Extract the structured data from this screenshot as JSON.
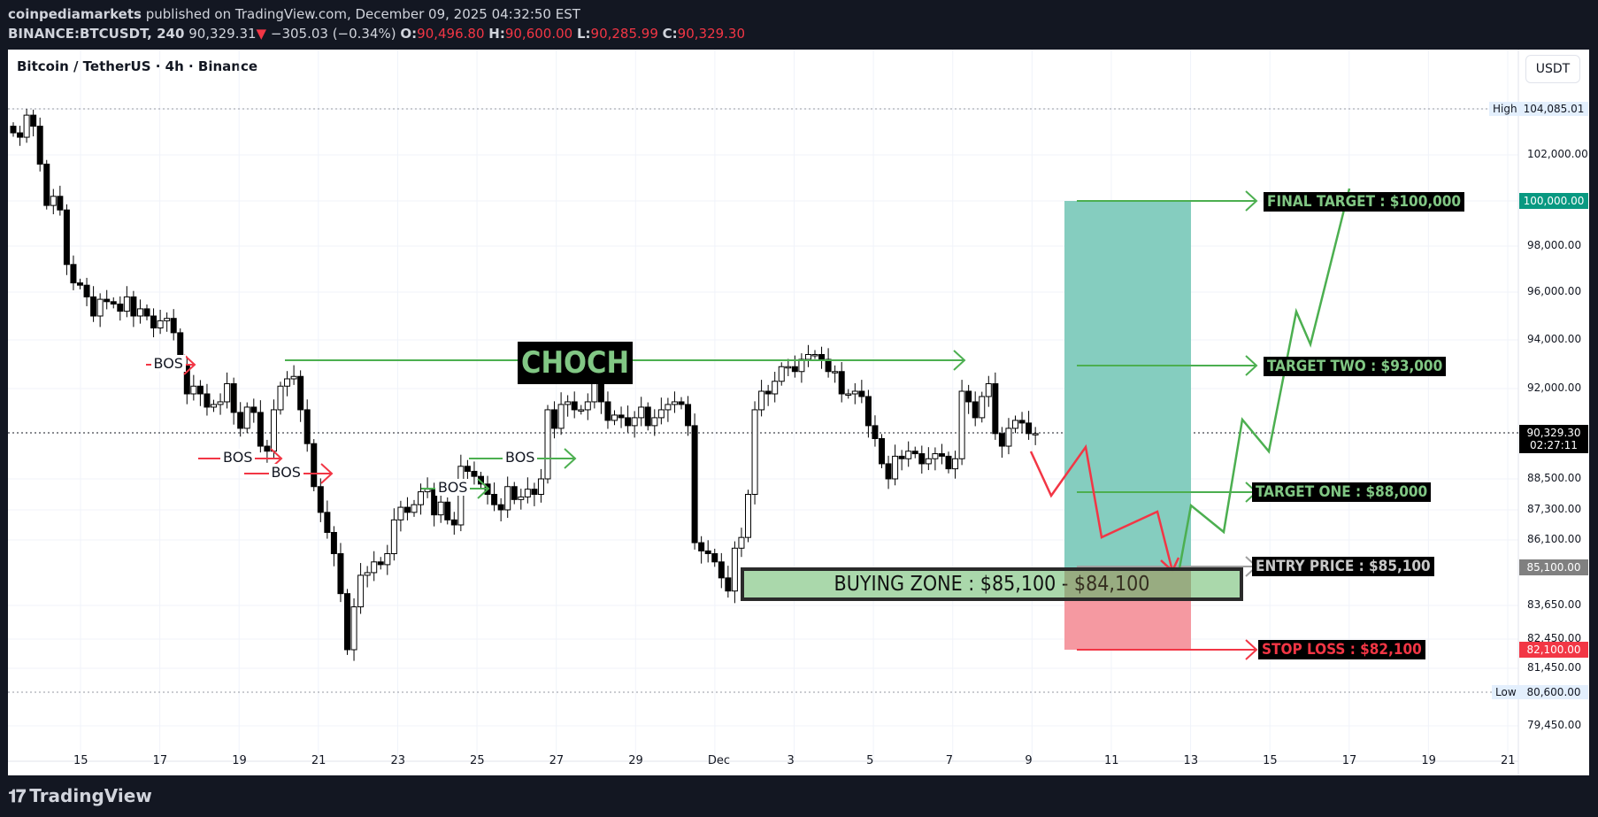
{
  "header": {
    "publisher": "coinpediamarkets",
    "published_text": " published on TradingView.com, December 09, 2025 04:32:50 EST",
    "symbol": "BINANCE:BTCUSDT, 240",
    "last_price": "90,329.31",
    "change_arrow": "▼",
    "change": "−305.03 (−0.34%)",
    "open_label": "O:",
    "open": "90,496.80",
    "high_label": "H:",
    "high": "90,600.00",
    "low_label": "L:",
    "low": "90,285.99",
    "close_label": "C:",
    "close": "90,329.30"
  },
  "chart": {
    "title": "Bitcoin / TetherUS · 4h · Binance",
    "currency_button": "USDT",
    "high_label": "High",
    "high_value": "104,085.01",
    "low_label": "Low",
    "low_value": "80,600.00",
    "current_price": "90,329.30",
    "countdown": "02:27:11",
    "tag_final": "100,000.00",
    "tag_entry": "85,100.00",
    "tag_stop": "82,100.00"
  },
  "annotations": {
    "choch": "CHOCH",
    "bos": "BOS",
    "buying_zone": "BUYING ZONE : $85,100 - $84,100",
    "final_target": "FINAL TARGET : $100,000",
    "target_two": "TARGET TWO : $93,000",
    "target_one": "TARGET ONE : $88,000",
    "entry_price": "ENTRY PRICE : $85,100",
    "stop_loss": "STOP LOSS : $82,100"
  },
  "colors": {
    "green": "#4caf50",
    "red": "#f23645",
    "teal_fill": "#85cdbf",
    "red_fill": "#f599a1",
    "zone_fill": "#a5d6a7",
    "final_tag": "#089981",
    "entry_tag": "#808080",
    "stop_tag": "#f23645"
  },
  "footer": {
    "brand": "TradingView"
  },
  "chart_data": {
    "type": "candlestick",
    "title": "Bitcoin / TetherUS · 4h · Binance",
    "symbol": "BINANCE:BTCUSDT",
    "interval": "4h",
    "x_ticks": [
      "15",
      "17",
      "19",
      "21",
      "23",
      "25",
      "27",
      "29",
      "Dec",
      "3",
      "5",
      "7",
      "9",
      "11",
      "13",
      "15",
      "17",
      "19",
      "21"
    ],
    "y_ticks": [
      102000,
      100000,
      98000,
      96000,
      94000,
      92000,
      90329.3,
      88500,
      87300,
      86100,
      85100,
      83650,
      82450,
      82100,
      81450,
      80600,
      79450
    ],
    "ylim": [
      79000,
      104500
    ],
    "high": 104085.01,
    "low": 80600.0,
    "levels": {
      "final_target": 100000,
      "target_two": 93000,
      "target_one": 88000,
      "entry": 85100,
      "buying_zone": [
        84100,
        85100
      ],
      "stop_loss": 82100,
      "choch": 93200
    },
    "candles_close_approx": [
      103000,
      102800,
      103800,
      103300,
      101600,
      99800,
      100200,
      99600,
      97200,
      96400,
      96300,
      95800,
      95000,
      95700,
      95600,
      95500,
      95200,
      95800,
      95000,
      95300,
      95000,
      94500,
      94800,
      94900,
      94300,
      93000,
      91800,
      92100,
      91800,
      91300,
      91400,
      91500,
      92200,
      91100,
      90500,
      91300,
      91100,
      89800,
      89600,
      91200,
      92100,
      92400,
      92500,
      91200,
      89900,
      88200,
      87200,
      86400,
      85600,
      84100,
      82100,
      83600,
      84800,
      84900,
      85300,
      85200,
      85600,
      86900,
      87400,
      87200,
      87500,
      88000,
      88100,
      87100,
      87600,
      86900,
      86700,
      89000,
      88800,
      88600,
      88300,
      87900,
      87500,
      87300,
      88200,
      87700,
      87800,
      88100,
      87900,
      88500,
      91200,
      90500,
      91400,
      91500,
      91200,
      91200,
      91500,
      92300,
      91500,
      90800,
      91000,
      90900,
      90600,
      90900,
      91300,
      90600,
      90900,
      91200,
      91400,
      91500,
      91400,
      90600,
      86000,
      85700,
      85600,
      85300,
      84700,
      84200,
      85800,
      86200,
      87900,
      91200,
      91900,
      91800,
      92300,
      92900,
      92900,
      92700,
      93200,
      93400,
      93400,
      93200,
      92700,
      92700,
      91800,
      91800,
      91900,
      91700,
      90600,
      90100,
      89100,
      88500,
      89400,
      89300,
      89600,
      89500,
      89100,
      89300,
      89500,
      89400,
      88900,
      89300,
      91900,
      91500,
      90900,
      91700,
      92200,
      90300,
      89800,
      90500,
      90800,
      90700,
      90300,
      90300
    ],
    "projection_red_x": [
      "Dec 9",
      "Dec 10",
      "Dec 11",
      "Dec 12",
      "Dec 12.5"
    ],
    "projection_green_y": [
      85100,
      87800,
      86300,
      90500,
      89300,
      94400,
      92400,
      100000
    ]
  }
}
